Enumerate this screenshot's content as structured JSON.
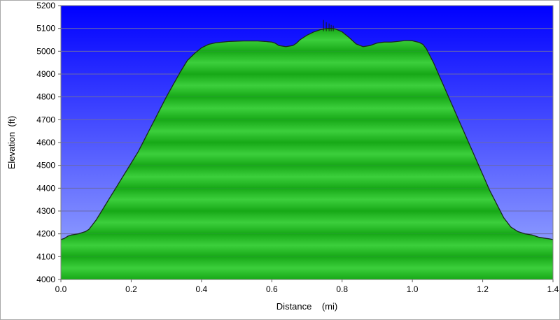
{
  "chart_data": {
    "type": "area",
    "title": "",
    "xlabel": "Distance    (mi)",
    "ylabel": "Elevation  (ft)",
    "xlim": [
      0,
      1.4
    ],
    "ylim": [
      4000,
      5200
    ],
    "xticks": [
      "0.0",
      "0.2",
      "0.4",
      "0.6",
      "0.8",
      "1.0",
      "1.2",
      "1.4"
    ],
    "yticks": [
      "4000",
      "4100",
      "4200",
      "4300",
      "4400",
      "4500",
      "4600",
      "4700",
      "4800",
      "4900",
      "5000",
      "5100",
      "5200"
    ],
    "grid": true,
    "legend": "none",
    "colors": {
      "sky_top": "#0000ff",
      "sky_bottom": "#a0b0ff",
      "fill_light": "#3ccf3c",
      "fill_dark": "#17a817",
      "outline": "#1a2a1a",
      "gridline": "#6a6aa8"
    },
    "series": [
      {
        "x": [
          0.0,
          0.01,
          0.02,
          0.03,
          0.05,
          0.07,
          0.08,
          0.09,
          0.1,
          0.12,
          0.14,
          0.16,
          0.18,
          0.2,
          0.22,
          0.24,
          0.26,
          0.28,
          0.3,
          0.32,
          0.34,
          0.36,
          0.38,
          0.4,
          0.42,
          0.44,
          0.46,
          0.48,
          0.5,
          0.52,
          0.54,
          0.56,
          0.58,
          0.6,
          0.61,
          0.62,
          0.64,
          0.66,
          0.67,
          0.68,
          0.7,
          0.72,
          0.74,
          0.75,
          0.76,
          0.77,
          0.78,
          0.8,
          0.82,
          0.84,
          0.86,
          0.88,
          0.9,
          0.92,
          0.94,
          0.96,
          0.98,
          1.0,
          1.02,
          1.03,
          1.04,
          1.06,
          1.08,
          1.1,
          1.12,
          1.14,
          1.16,
          1.18,
          1.2,
          1.22,
          1.24,
          1.26,
          1.28,
          1.3,
          1.32,
          1.34,
          1.36,
          1.38,
          1.39,
          1.4
        ],
        "y": [
          4175,
          4180,
          4190,
          4195,
          4200,
          4210,
          4220,
          4240,
          4260,
          4310,
          4360,
          4410,
          4460,
          4510,
          4560,
          4620,
          4680,
          4740,
          4800,
          4855,
          4910,
          4960,
          4990,
          5015,
          5030,
          5037,
          5040,
          5043,
          5044,
          5045,
          5045,
          5045,
          5043,
          5040,
          5035,
          5025,
          5020,
          5025,
          5035,
          5050,
          5070,
          5085,
          5095,
          5098,
          5100,
          5100,
          5098,
          5085,
          5060,
          5032,
          5020,
          5025,
          5036,
          5040,
          5040,
          5043,
          5047,
          5046,
          5038,
          5030,
          5010,
          4950,
          4880,
          4810,
          4740,
          4670,
          4600,
          4530,
          4460,
          4390,
          4330,
          4270,
          4230,
          4210,
          4200,
          4195,
          4185,
          4180,
          4178,
          4175
        ]
      }
    ]
  }
}
